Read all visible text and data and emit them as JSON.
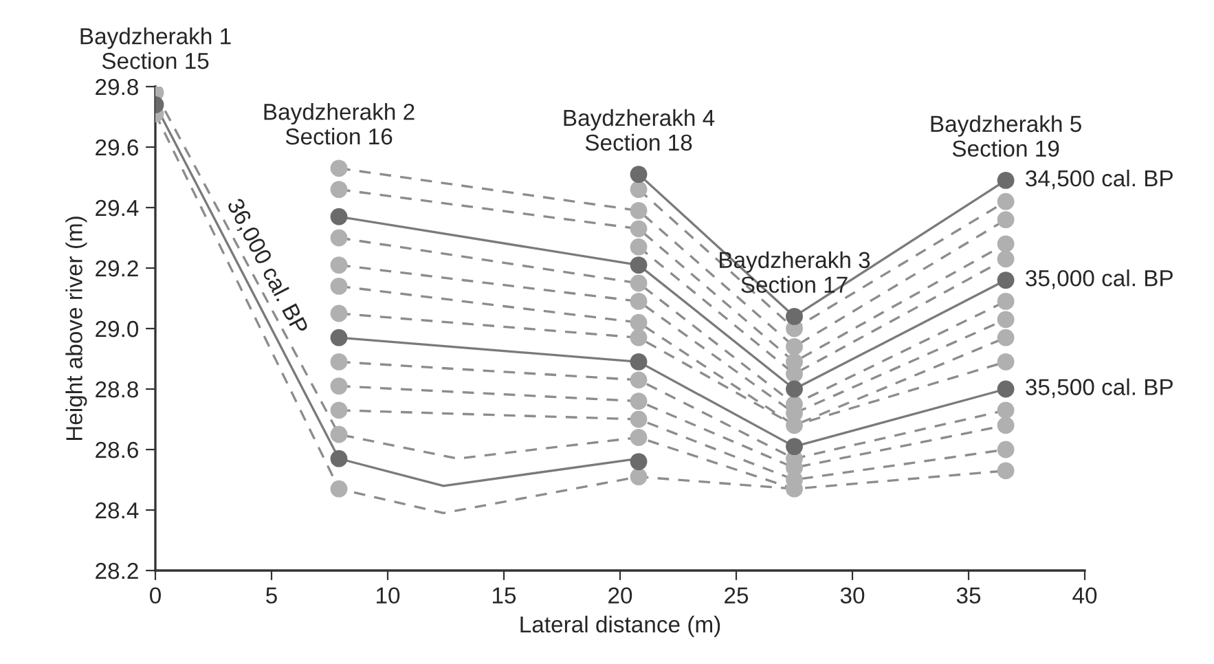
{
  "chart_data": {
    "type": "line",
    "xlabel": "Lateral distance (m)",
    "ylabel": "Height above river (m)",
    "xlim": [
      0,
      40
    ],
    "xticks": [
      0,
      5,
      10,
      15,
      20,
      25,
      30,
      35,
      40
    ],
    "ylim": [
      28.2,
      29.8
    ],
    "yticks": [
      {
        "value": 28.2,
        "label": "28.2"
      },
      {
        "value": 28.4,
        "label": "28.4"
      },
      {
        "value": 28.6,
        "label": "28.6"
      },
      {
        "value": 28.8,
        "label": "28.8"
      },
      {
        "value": 29.0,
        "label": "29.0"
      },
      {
        "value": 29.2,
        "label": "29.2"
      },
      {
        "value": 29.4,
        "label": "29.4"
      },
      {
        "value": 29.6,
        "label": "29.6"
      },
      {
        "value": 29.8,
        "label": "29.8"
      }
    ],
    "grid": false,
    "legend": false,
    "series": [
      {
        "type": "line",
        "line_style": "dashed",
        "color": "#8c8c8c",
        "x": [
          20.8,
          27.5,
          36.6
        ],
        "values": [
          29.46,
          29.0,
          29.42
        ]
      },
      {
        "type": "line",
        "line_style": "dashed",
        "color": "#8c8c8c",
        "x": [
          7.9,
          20.8,
          27.5,
          36.6
        ],
        "values": [
          29.53,
          29.39,
          28.94,
          29.36
        ]
      },
      {
        "type": "line",
        "line_style": "dashed",
        "color": "#8c8c8c",
        "x": [
          7.9,
          20.8,
          27.5,
          36.6
        ],
        "values": [
          29.46,
          29.33,
          28.89,
          29.28
        ]
      },
      {
        "type": "line",
        "line_style": "dashed",
        "color": "#8c8c8c",
        "x": [
          20.8,
          27.5,
          36.6
        ],
        "values": [
          29.27,
          28.85,
          29.23
        ]
      },
      {
        "type": "line",
        "line_style": "dashed",
        "color": "#8c8c8c",
        "x": [
          7.9,
          20.8,
          27.5,
          36.6
        ],
        "values": [
          29.3,
          29.15,
          28.75,
          29.09
        ]
      },
      {
        "type": "line",
        "line_style": "dashed",
        "color": "#8c8c8c",
        "x": [
          7.9,
          20.8,
          27.5,
          36.6
        ],
        "values": [
          29.21,
          29.09,
          28.72,
          29.03
        ]
      },
      {
        "type": "line",
        "line_style": "dashed",
        "color": "#8c8c8c",
        "x": [
          7.9,
          20.8,
          27.5,
          36.6
        ],
        "values": [
          29.14,
          29.02,
          28.68,
          28.97
        ]
      },
      {
        "type": "line",
        "line_style": "dashed",
        "color": "#8c8c8c",
        "x": [
          7.9,
          20.8,
          27.5,
          36.6
        ],
        "values": [
          29.05,
          28.97,
          28.68,
          28.89
        ]
      },
      {
        "type": "line",
        "line_style": "dashed",
        "color": "#8c8c8c",
        "x": [
          7.9,
          20.8,
          27.5,
          36.6
        ],
        "values": [
          28.89,
          28.83,
          28.57,
          28.73
        ]
      },
      {
        "type": "line",
        "line_style": "dashed",
        "color": "#8c8c8c",
        "x": [
          7.9,
          20.8,
          27.5,
          36.6
        ],
        "values": [
          28.81,
          28.76,
          28.54,
          28.68
        ]
      },
      {
        "type": "line",
        "line_style": "dashed",
        "color": "#8c8c8c",
        "x": [
          7.9,
          20.8,
          27.5,
          36.6
        ],
        "values": [
          28.73,
          28.7,
          28.5,
          28.6
        ]
      },
      {
        "type": "line",
        "line_style": "dashed",
        "color": "#8c8c8c",
        "x": [
          0,
          7.9,
          13,
          20.8,
          27.5,
          36.6
        ],
        "values": [
          29.78,
          28.65,
          28.57,
          28.64,
          28.47,
          28.53
        ]
      },
      {
        "type": "line",
        "line_style": "dashed",
        "color": "#8c8c8c",
        "x": [
          0,
          7.9,
          12.4,
          20.8,
          27.5
        ],
        "values": [
          29.71,
          28.47,
          28.39,
          28.51,
          28.47
        ]
      },
      {
        "line_style": "solid",
        "color": "#7a7a7a",
        "name": "34,500 cal. BP",
        "x": [
          20.8,
          27.5,
          36.6
        ],
        "values": [
          29.51,
          29.04,
          29.49
        ]
      },
      {
        "line_style": "solid",
        "color": "#7a7a7a",
        "name": "35,000 cal. BP",
        "x": [
          7.9,
          20.8,
          27.5,
          36.6
        ],
        "values": [
          29.37,
          29.21,
          28.8,
          29.16
        ]
      },
      {
        "line_style": "solid",
        "color": "#7a7a7a",
        "name": "35,500 cal. BP",
        "x": [
          7.9,
          20.8,
          27.5,
          36.6
        ],
        "values": [
          28.97,
          28.89,
          28.61,
          28.8
        ]
      },
      {
        "line_style": "solid",
        "color": "#7a7a7a",
        "name": "36,000 cal. BP",
        "x": [
          0,
          7.9,
          12.4,
          20.8
        ],
        "values": [
          29.74,
          28.57,
          28.48,
          28.57
        ]
      },
      {
        "type": "scatter",
        "marker": "circle",
        "color": "#b0b0b0",
        "x": [
          0,
          0,
          7.9,
          7.9,
          7.9,
          7.9,
          7.9,
          7.9,
          7.9,
          7.9,
          7.9,
          7.9,
          7.9,
          20.8,
          20.8,
          20.8,
          20.8,
          20.8,
          20.8,
          20.8,
          20.8,
          20.8,
          20.8,
          20.8,
          20.8,
          20.8,
          27.5,
          27.5,
          27.5,
          27.5,
          27.5,
          27.5,
          27.5,
          27.5,
          27.5,
          27.5,
          27.5,
          36.6,
          36.6,
          36.6,
          36.6,
          36.6,
          36.6,
          36.6,
          36.6,
          36.6,
          36.6,
          36.6,
          36.6
        ],
        "values": [
          29.78,
          29.71,
          29.53,
          29.46,
          29.3,
          29.21,
          29.14,
          29.05,
          28.89,
          28.81,
          28.73,
          28.65,
          28.47,
          29.46,
          29.39,
          29.33,
          29.27,
          29.15,
          29.09,
          29.02,
          28.97,
          28.83,
          28.76,
          28.7,
          28.64,
          28.51,
          29.0,
          28.94,
          28.89,
          28.85,
          28.75,
          28.72,
          28.68,
          28.57,
          28.54,
          28.5,
          28.47,
          29.42,
          29.36,
          29.28,
          29.23,
          29.09,
          29.03,
          28.97,
          28.89,
          28.73,
          28.68,
          28.6,
          28.53
        ]
      },
      {
        "type": "scatter",
        "marker": "circle",
        "color": "#6b6b6b",
        "x": [
          0,
          7.9,
          7.9,
          7.9,
          20.8,
          20.8,
          20.8,
          20.8,
          27.5,
          27.5,
          27.5,
          36.6,
          36.6,
          36.6
        ],
        "values": [
          29.74,
          29.37,
          28.97,
          28.57,
          29.51,
          29.21,
          28.89,
          28.56,
          29.04,
          28.8,
          28.61,
          29.49,
          29.16,
          28.8
        ]
      }
    ],
    "annotations": [
      {
        "text": "Baydzherakh 1\nSection 15",
        "x": 0,
        "y": 29.78
      },
      {
        "text": "Baydzherakh 2\nSection 16",
        "x": 7.9,
        "y": 29.53
      },
      {
        "text": "Baydzherakh 4\nSection 18",
        "x": 20.8,
        "y": 29.51
      },
      {
        "text": "Baydzherakh 3\nSection 17",
        "x": 27.5,
        "y": 29.04
      },
      {
        "text": "Baydzherakh 5\nSection 19",
        "x": 36.6,
        "y": 29.49
      }
    ]
  }
}
